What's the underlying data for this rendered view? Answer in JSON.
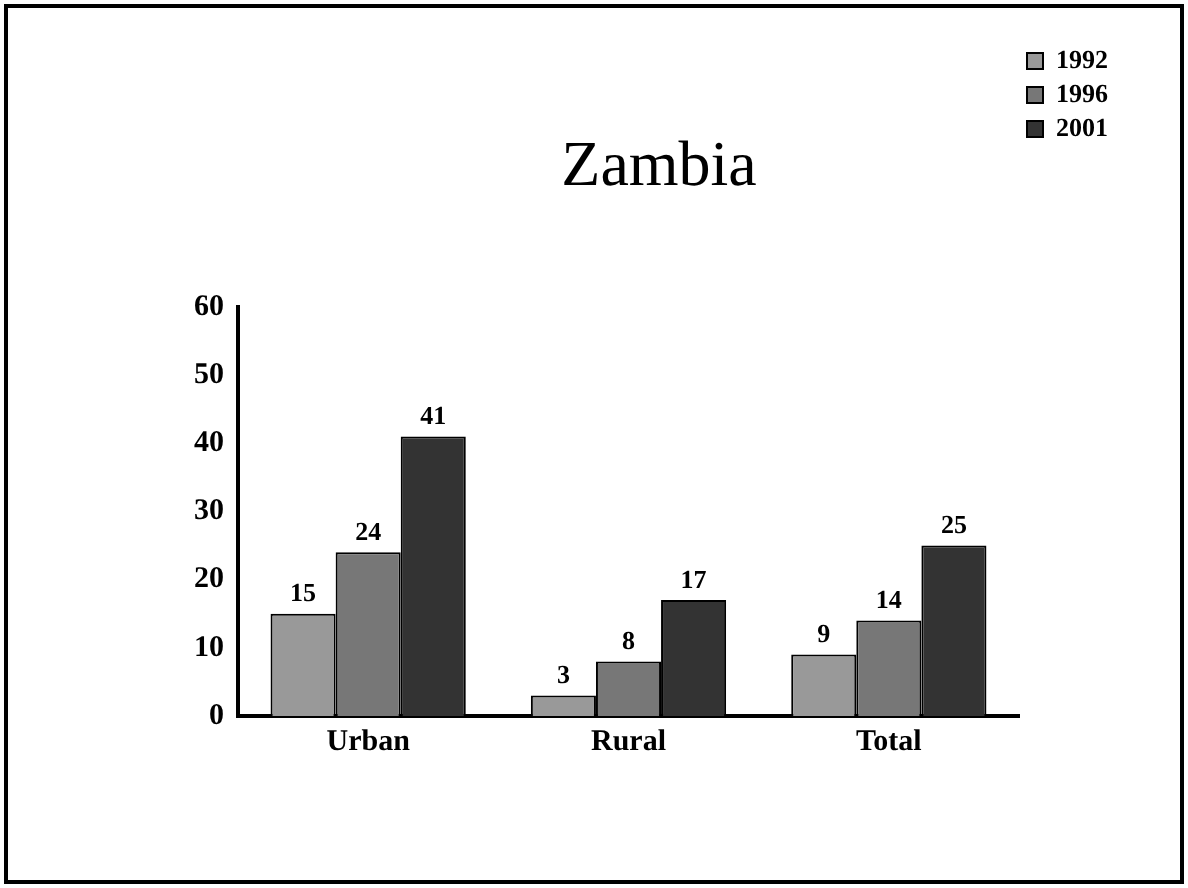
{
  "chart_data": {
    "type": "bar",
    "title": "Zambia",
    "categories": [
      "Urban",
      "Rural",
      "Total"
    ],
    "series": [
      {
        "name": "1992",
        "color": "#999999",
        "values": [
          15,
          3,
          9
        ]
      },
      {
        "name": "1996",
        "color": "#777777",
        "values": [
          24,
          8,
          14
        ]
      },
      {
        "name": "2001",
        "color": "#333333",
        "values": [
          41,
          17,
          25
        ]
      }
    ],
    "ylim": [
      0,
      60
    ],
    "yticks": [
      0,
      10,
      20,
      30,
      40,
      50,
      60
    ],
    "grid": false,
    "legend": "top right",
    "data_labels": true
  }
}
